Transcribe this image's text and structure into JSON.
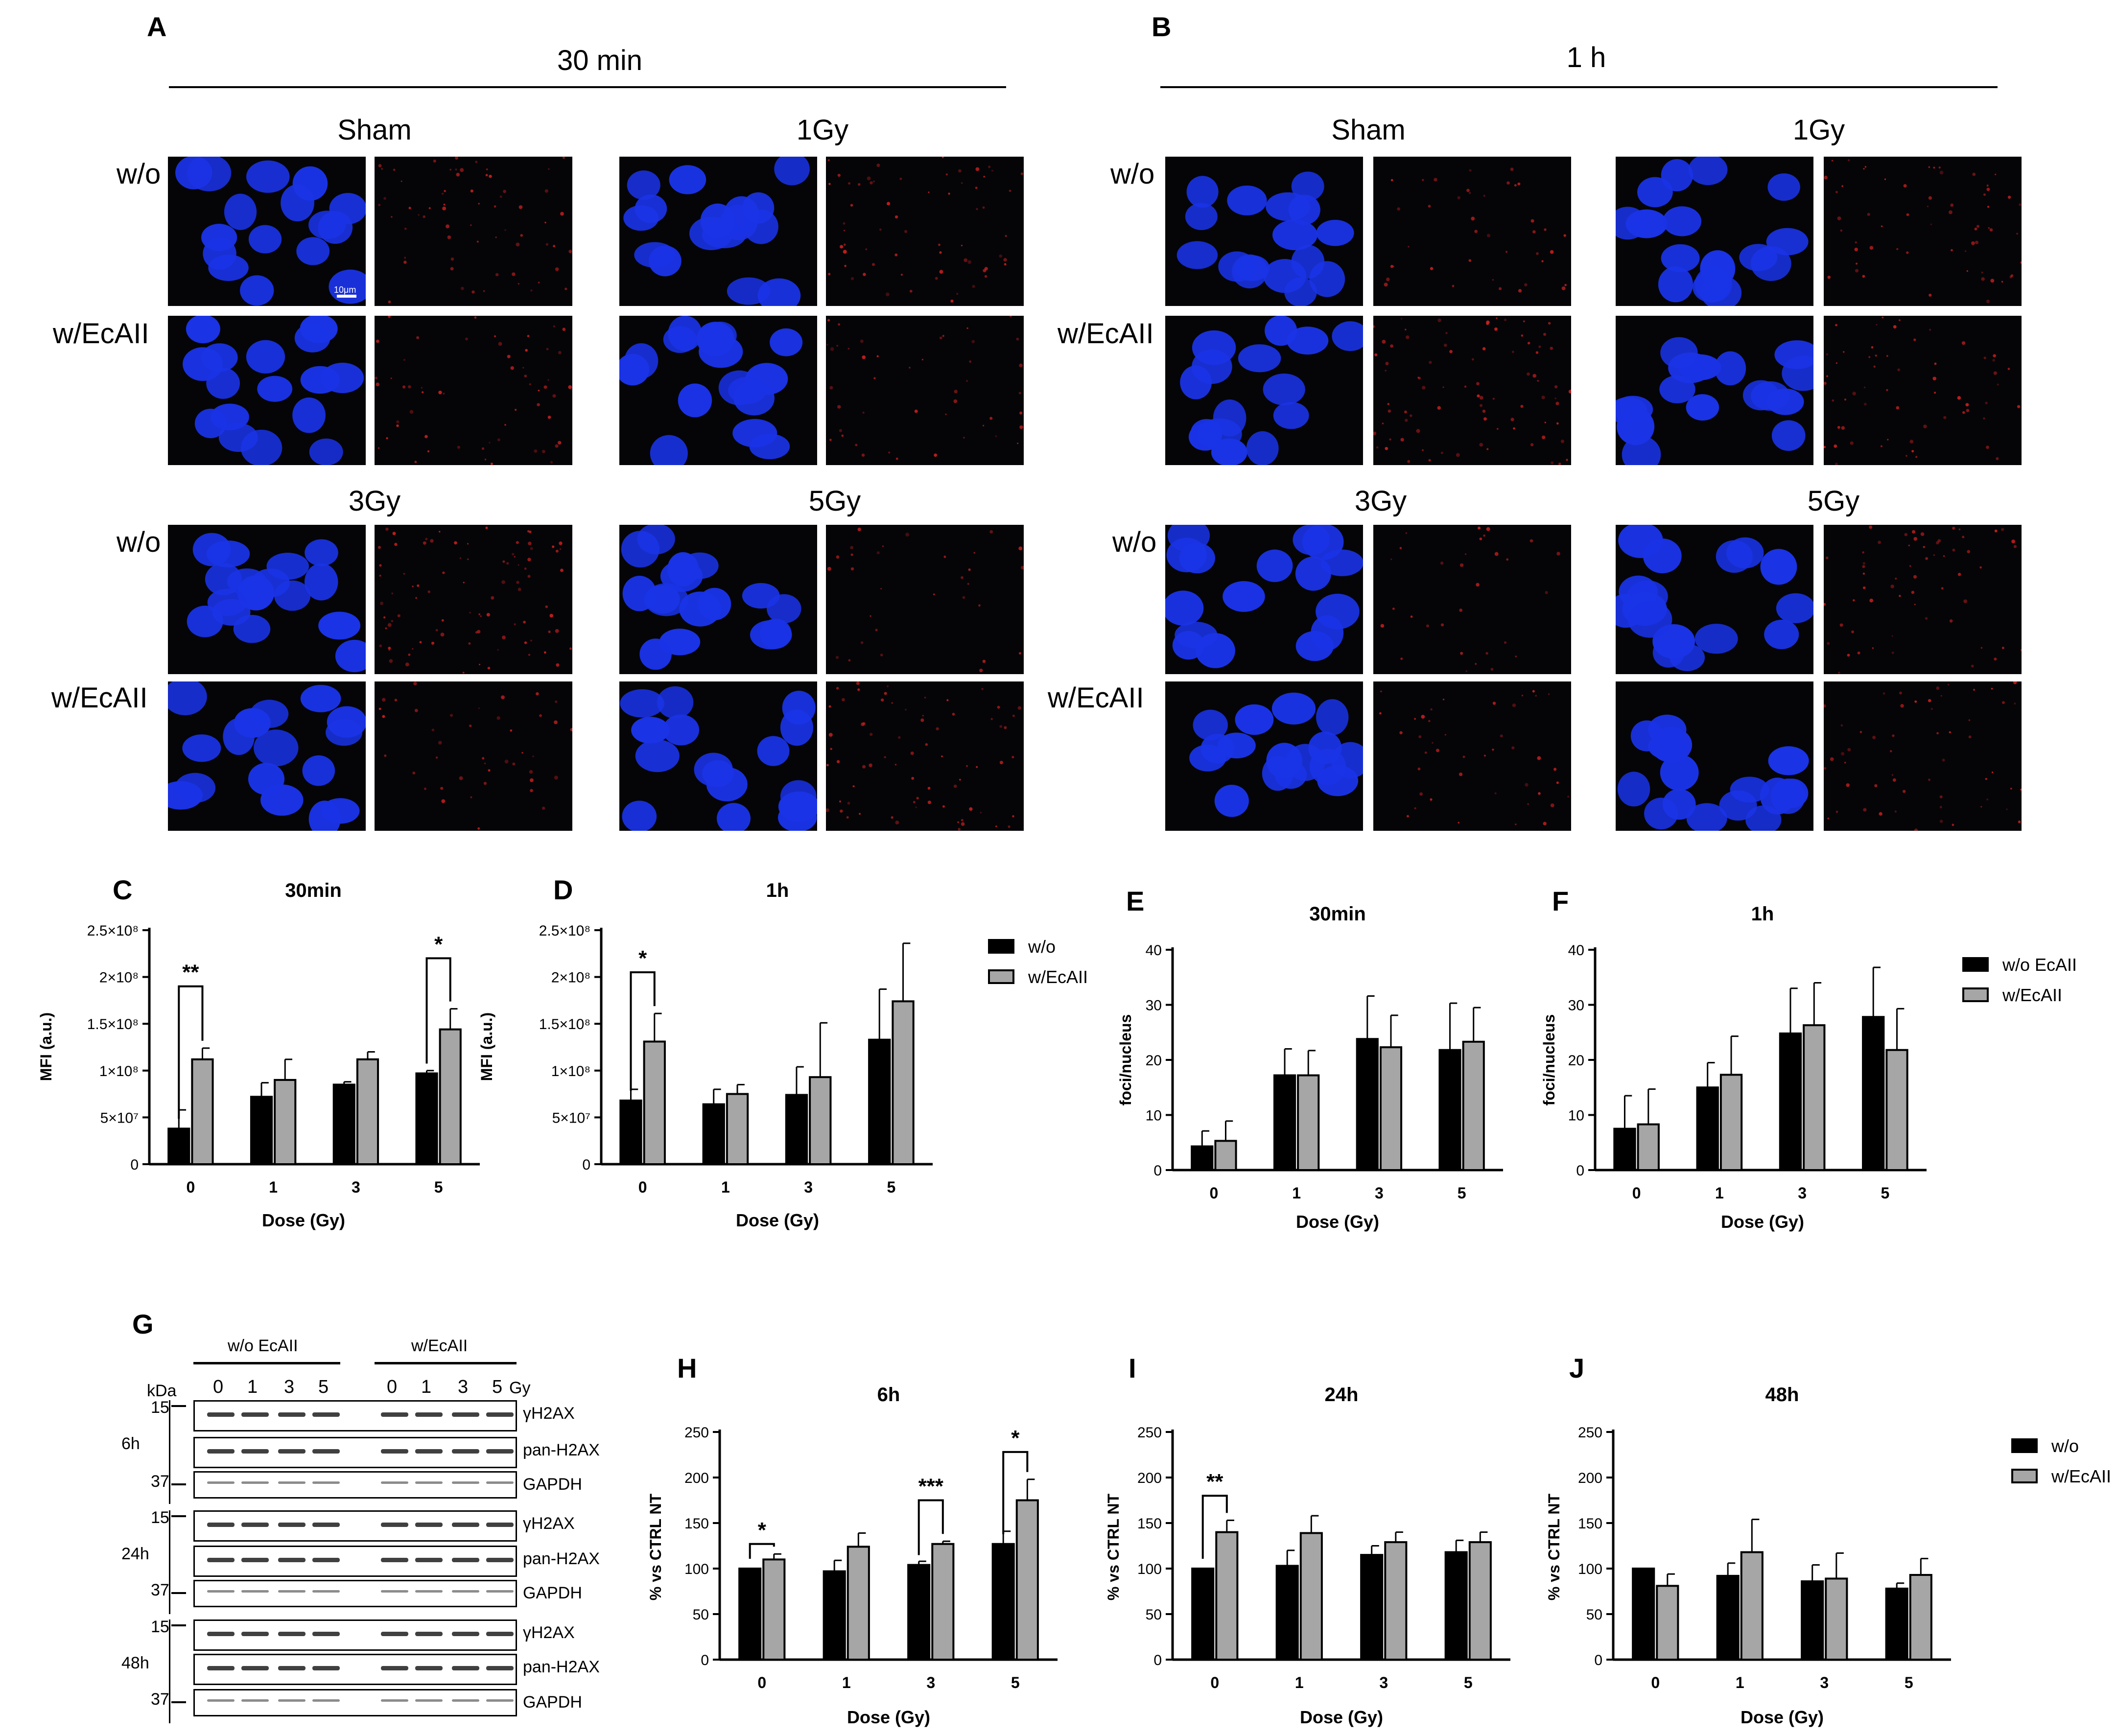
{
  "panels": {
    "A": {
      "letter": "A",
      "title": "30 min",
      "groups": [
        {
          "dose": "Sham",
          "rows": [
            {
              "label": "w/o",
              "scale": "10μm"
            },
            {
              "label": "w/EcAII"
            }
          ]
        },
        {
          "dose": "1Gy"
        },
        {
          "dose": "3Gy",
          "rows": [
            {
              "label": "w/o"
            },
            {
              "label": "w/EcAII"
            }
          ]
        },
        {
          "dose": "5Gy"
        }
      ]
    },
    "B": {
      "letter": "B",
      "title": "1 h",
      "groups": [
        {
          "dose": "Sham",
          "rows": [
            {
              "label": "w/o"
            },
            {
              "label": "w/EcAII"
            }
          ]
        },
        {
          "dose": "1Gy"
        },
        {
          "dose": "3Gy",
          "rows": [
            {
              "label": "w/o"
            },
            {
              "label": "w/EcAII"
            }
          ]
        },
        {
          "dose": "5Gy"
        }
      ]
    },
    "C": {
      "letter": "C"
    },
    "D": {
      "letter": "D"
    },
    "E": {
      "letter": "E"
    },
    "F": {
      "letter": "F"
    },
    "G": {
      "letter": "G",
      "group1": "w/o EcAII",
      "group2": "w/EcAII",
      "kda": "kDa",
      "gy": "Gy",
      "lanes": [
        "0",
        "1",
        "3",
        "5",
        "0",
        "1",
        "3",
        "5"
      ],
      "times": [
        "6h",
        "24h",
        "48h"
      ],
      "markers": [
        "15",
        "37"
      ],
      "bands": [
        "γH2AX",
        "pan-H2AX",
        "GAPDH"
      ]
    },
    "H": {
      "letter": "H"
    },
    "I": {
      "letter": "I"
    },
    "J": {
      "letter": "J"
    }
  },
  "colors": {
    "series1": "#000000",
    "series2": "#a6a6a6",
    "nucleus": "#1a33e6",
    "foci": "#d42020",
    "background": "#050508"
  },
  "legends": {
    "CD": [
      "w/o",
      "w/EcAII"
    ],
    "EF": [
      "w/o EcAII",
      "w/EcAII"
    ],
    "HIJ": [
      "w/o",
      "w/EcAII"
    ]
  },
  "chart_data": [
    {
      "panel": "C",
      "type": "bar",
      "title": "30min",
      "xlabel": "Dose (Gy)",
      "ylabel": "MFI (a.u.)",
      "categories": [
        "0",
        "1",
        "3",
        "5"
      ],
      "yticks": [
        "0",
        "5×10⁷",
        "1×10⁸",
        "1.5×10⁸",
        "2×10⁸",
        "2.5×10⁸"
      ],
      "ylim": [
        0,
        250000000
      ],
      "series": [
        {
          "name": "w/o",
          "values": [
            38000000,
            72000000,
            85000000,
            97000000
          ],
          "errors": [
            20000000,
            15000000,
            3000000,
            3000000
          ]
        },
        {
          "name": "w/EcAII",
          "values": [
            112000000,
            90000000,
            112000000,
            144000000
          ],
          "errors": [
            12000000,
            22000000,
            8000000,
            22000000
          ]
        }
      ],
      "significance": [
        {
          "category": "0",
          "label": "**",
          "y": 190000000
        },
        {
          "category": "5",
          "label": "*",
          "y": 220000000
        }
      ]
    },
    {
      "panel": "D",
      "type": "bar",
      "title": "1h",
      "xlabel": "Dose (Gy)",
      "ylabel": "MFI (a.u.)",
      "categories": [
        "0",
        "1",
        "3",
        "5"
      ],
      "yticks": [
        "0",
        "5×10⁷",
        "1×10⁸",
        "1.5×10⁸",
        "2×10⁸",
        "2.5×10⁸"
      ],
      "ylim": [
        0,
        250000000
      ],
      "series": [
        {
          "name": "w/o",
          "values": [
            68000000,
            64000000,
            74000000,
            133000000
          ],
          "errors": [
            12000000,
            16000000,
            30000000,
            54000000
          ]
        },
        {
          "name": "w/EcAII",
          "values": [
            131000000,
            75000000,
            93000000,
            174000000
          ],
          "errors": [
            30000000,
            10000000,
            58000000,
            62000000
          ]
        }
      ],
      "significance": [
        {
          "category": "0",
          "label": "*",
          "y": 205000000
        }
      ]
    },
    {
      "panel": "E",
      "type": "bar",
      "title": "30min",
      "xlabel": "Dose (Gy)",
      "ylabel": "foci/nucleus",
      "categories": [
        "0",
        "1",
        "3",
        "5"
      ],
      "yticks": [
        "0",
        "10",
        "20",
        "30",
        "40"
      ],
      "ylim": [
        0,
        40
      ],
      "series": [
        {
          "name": "w/o EcAII",
          "values": [
            4.3,
            17.2,
            23.8,
            21.8
          ],
          "errors": [
            2.8,
            4.8,
            7.8,
            8.5
          ]
        },
        {
          "name": "w/EcAII",
          "values": [
            5.3,
            17.2,
            22.3,
            23.3
          ],
          "errors": [
            3.6,
            4.5,
            5.8,
            6.2
          ]
        }
      ]
    },
    {
      "panel": "F",
      "type": "bar",
      "title": "1h",
      "xlabel": "Dose (Gy)",
      "ylabel": "foci/nucleus",
      "categories": [
        "0",
        "1",
        "3",
        "5"
      ],
      "yticks": [
        "0",
        "10",
        "20",
        "30",
        "40"
      ],
      "ylim": [
        0,
        40
      ],
      "series": [
        {
          "name": "w/o EcAII",
          "values": [
            7.5,
            15,
            24.8,
            27.8
          ],
          "errors": [
            6,
            4.5,
            8.2,
            9
          ]
        },
        {
          "name": "w/EcAII",
          "values": [
            8.3,
            17.3,
            26.3,
            21.8
          ],
          "errors": [
            6.4,
            7,
            7.7,
            7.5
          ]
        }
      ]
    },
    {
      "panel": "H",
      "type": "bar",
      "title": "6h",
      "xlabel": "Dose (Gy)",
      "ylabel": "% vs CTRL NT",
      "categories": [
        "0",
        "1",
        "3",
        "5"
      ],
      "yticks": [
        "0",
        "50",
        "100",
        "150",
        "200",
        "250"
      ],
      "ylim": [
        0,
        250
      ],
      "series": [
        {
          "name": "w/o",
          "values": [
            100,
            97,
            104,
            127
          ],
          "errors": [
            0,
            12,
            4,
            14
          ]
        },
        {
          "name": "w/EcAII",
          "values": [
            110,
            124,
            127,
            175
          ],
          "errors": [
            6,
            15,
            3,
            23
          ]
        }
      ],
      "significance": [
        {
          "category": "0",
          "label": "*",
          "y": 127
        },
        {
          "category": "3",
          "label": "***",
          "y": 175
        },
        {
          "category": "5",
          "label": "*",
          "y": 228
        }
      ]
    },
    {
      "panel": "I",
      "type": "bar",
      "title": "24h",
      "xlabel": "Dose (Gy)",
      "ylabel": "% vs CTRL NT",
      "categories": [
        "0",
        "1",
        "3",
        "5"
      ],
      "yticks": [
        "0",
        "50",
        "100",
        "150",
        "200",
        "250"
      ],
      "ylim": [
        0,
        250
      ],
      "series": [
        {
          "name": "w/o",
          "values": [
            100,
            103,
            115,
            118
          ],
          "errors": [
            0,
            17,
            10,
            13
          ]
        },
        {
          "name": "w/EcAII",
          "values": [
            140,
            139,
            129,
            129
          ],
          "errors": [
            13,
            19,
            11,
            11
          ]
        }
      ],
      "significance": [
        {
          "category": "0",
          "label": "**",
          "y": 180
        }
      ]
    },
    {
      "panel": "J",
      "type": "bar",
      "title": "48h",
      "xlabel": "Dose (Gy)",
      "ylabel": "% vs CTRL NT",
      "categories": [
        "0",
        "1",
        "3",
        "5"
      ],
      "yticks": [
        "0",
        "50",
        "100",
        "150",
        "200",
        "250"
      ],
      "ylim": [
        0,
        250
      ],
      "series": [
        {
          "name": "w/o",
          "values": [
            100,
            92,
            86,
            78
          ],
          "errors": [
            0,
            14,
            18,
            6
          ]
        },
        {
          "name": "w/EcAII",
          "values": [
            81,
            118,
            89,
            93
          ],
          "errors": [
            13,
            36,
            28,
            18
          ]
        }
      ]
    }
  ]
}
